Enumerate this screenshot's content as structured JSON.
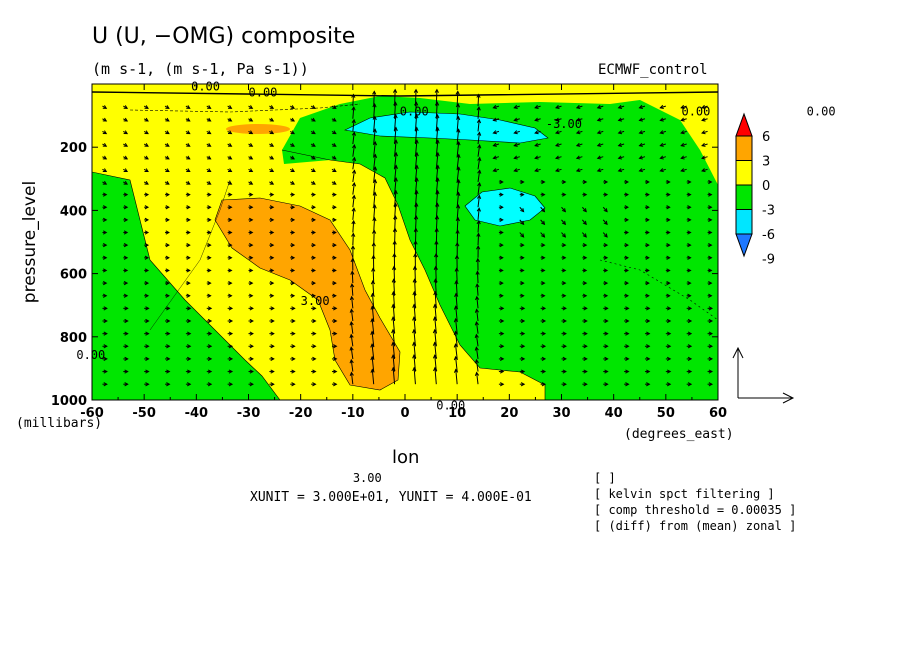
{
  "header": {
    "title": "U (U, −OMG) composite",
    "subtitle": "(m s-1, (m s-1, Pa s-1))",
    "dataset": "ECMWF_control"
  },
  "footer": {
    "unit_line": "XUNIT = 3.000E+01, YUNIT = 4.000E-01",
    "notes": [
      "[  ]",
      "[ kelvin spct filtering ]",
      "[ comp threshold = 0.00035 ]",
      "[ (diff) from (mean) zonal ]"
    ]
  },
  "colors": {
    "c_neg9": "#1e78ff",
    "c_neg6": "#00e6ff",
    "c_neg3": "#00e600",
    "c_0": "#ffff00",
    "c_3": "#ffa500",
    "c_6": "#ff0000"
  },
  "chart_data": {
    "type": "contour",
    "title": "U (U, −OMG) composite",
    "xlabel": "lon",
    "ylabel": "pressure_level",
    "x_units": "(degrees_east)",
    "y_units": "(millibars)",
    "xlim": [
      -60,
      60
    ],
    "ylim": [
      1000,
      0
    ],
    "xticks": [
      -60,
      -50,
      -40,
      -30,
      -20,
      -10,
      0,
      10,
      20,
      30,
      40,
      50,
      60
    ],
    "yticks": [
      200,
      400,
      600,
      800,
      1000
    ],
    "colorbar": {
      "levels": [
        6,
        3,
        0,
        -3,
        -6,
        -9
      ],
      "extend": "both",
      "placement": "right"
    },
    "contour_labels": [
      "0.00",
      "0.00",
      "0.00",
      "-3.00",
      "0.00",
      "0.00",
      "3.00",
      "0.00",
      "0.00",
      "3.00"
    ],
    "regions": [
      {
        "level": "c_3",
        "desc": "positive anomaly tilted westward with height",
        "lon_range": [
          -37,
          -4
        ],
        "p_range": [
          380,
          960
        ]
      },
      {
        "level": "c_neg6",
        "desc": "upper-level minimum",
        "lon_range": [
          -12,
          24
        ],
        "p_range": [
          90,
          170
        ]
      },
      {
        "level": "c_neg6",
        "desc": "mid-level minimum",
        "lon_range": [
          10,
          27
        ],
        "p_range": [
          350,
          450
        ]
      },
      {
        "level": "c_3",
        "desc": "small upper-level maximum",
        "lon_range": [
          -34,
          -21
        ],
        "p_range": [
          100,
          150
        ]
      }
    ],
    "vectors": {
      "components": "(U, -OMG)",
      "xunit": 30.0,
      "yunit": 0.4,
      "strong_vertical_band_lon": [
        -10,
        15
      ]
    },
    "grid": false
  }
}
